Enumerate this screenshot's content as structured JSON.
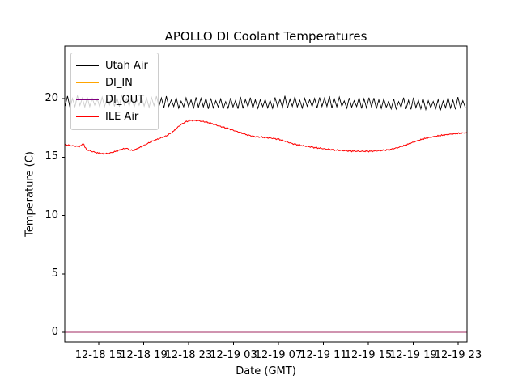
{
  "figure": {
    "background_color": "#ffffff",
    "kind": "matplotlib line plot"
  },
  "chart_data": {
    "type": "line",
    "title": "APOLLO DI Coolant Temperatures",
    "xlabel": "Date (GMT)",
    "ylabel": "Temperature (C)",
    "x_unit": "hours since 12-18 00:00 GMT",
    "xlim_hours": [
      12.0,
      47.8
    ],
    "ylim": [
      -0.85,
      24.47
    ],
    "yticks": [
      0,
      5,
      10,
      15,
      20
    ],
    "xticks": [
      {
        "hour": 15,
        "label": "12-18 15"
      },
      {
        "hour": 19,
        "label": "12-18 19"
      },
      {
        "hour": 23,
        "label": "12-18 23"
      },
      {
        "hour": 27,
        "label": "12-19 03"
      },
      {
        "hour": 31,
        "label": "12-19 07"
      },
      {
        "hour": 35,
        "label": "12-19 11"
      },
      {
        "hour": 39,
        "label": "12-19 15"
      },
      {
        "hour": 43,
        "label": "12-19 19"
      },
      {
        "hour": 47,
        "label": "12-19 23"
      }
    ],
    "grid": false,
    "legend": {
      "position": "upper left",
      "frame": true
    },
    "series": [
      {
        "name": "Utah Air",
        "color": "#000000",
        "line_width": 0.9,
        "pattern": "thermostat sawtooth oscillation",
        "oscillation": {
          "trough": 19.25,
          "peak": 20.0,
          "period_hours": 0.44
        }
      },
      {
        "name": "DI_IN",
        "color": "#ffa500",
        "line_width": 1.1,
        "points": [
          [
            12.0,
            0
          ],
          [
            47.8,
            0
          ]
        ]
      },
      {
        "name": "DI_OUT",
        "color": "#800080",
        "line_width": 1.1,
        "opacity": 0.75,
        "points": [
          [
            12.0,
            0
          ],
          [
            47.8,
            0
          ]
        ]
      },
      {
        "name": "ILE Air",
        "color": "#ff0000",
        "line_width": 1.0,
        "points": [
          [
            12.0,
            16.05
          ],
          [
            12.6,
            15.97
          ],
          [
            13.2,
            15.9
          ],
          [
            13.5,
            16.0
          ],
          [
            13.62,
            16.25
          ],
          [
            13.78,
            15.8
          ],
          [
            13.95,
            15.62
          ],
          [
            14.4,
            15.48
          ],
          [
            14.9,
            15.35
          ],
          [
            15.4,
            15.27
          ],
          [
            15.9,
            15.32
          ],
          [
            16.5,
            15.48
          ],
          [
            17.1,
            15.68
          ],
          [
            17.45,
            15.76
          ],
          [
            17.75,
            15.62
          ],
          [
            18.05,
            15.55
          ],
          [
            18.5,
            15.75
          ],
          [
            19.0,
            15.98
          ],
          [
            19.6,
            16.28
          ],
          [
            20.3,
            16.55
          ],
          [
            21.0,
            16.8
          ],
          [
            21.6,
            17.15
          ],
          [
            22.2,
            17.7
          ],
          [
            22.7,
            18.0
          ],
          [
            23.2,
            18.13
          ],
          [
            23.8,
            18.12
          ],
          [
            24.4,
            18.02
          ],
          [
            25.1,
            17.85
          ],
          [
            25.9,
            17.6
          ],
          [
            26.7,
            17.38
          ],
          [
            27.5,
            17.12
          ],
          [
            28.2,
            16.9
          ],
          [
            28.9,
            16.75
          ],
          [
            29.7,
            16.68
          ],
          [
            30.5,
            16.6
          ],
          [
            31.1,
            16.5
          ],
          [
            31.7,
            16.32
          ],
          [
            32.4,
            16.1
          ],
          [
            33.3,
            15.95
          ],
          [
            34.3,
            15.8
          ],
          [
            35.3,
            15.68
          ],
          [
            36.3,
            15.58
          ],
          [
            37.3,
            15.52
          ],
          [
            38.3,
            15.49
          ],
          [
            39.3,
            15.5
          ],
          [
            40.1,
            15.55
          ],
          [
            40.9,
            15.64
          ],
          [
            41.7,
            15.82
          ],
          [
            42.4,
            16.05
          ],
          [
            43.1,
            16.3
          ],
          [
            43.9,
            16.55
          ],
          [
            44.7,
            16.72
          ],
          [
            45.5,
            16.85
          ],
          [
            46.3,
            16.95
          ],
          [
            47.1,
            17.02
          ],
          [
            47.8,
            17.08
          ]
        ]
      }
    ]
  }
}
